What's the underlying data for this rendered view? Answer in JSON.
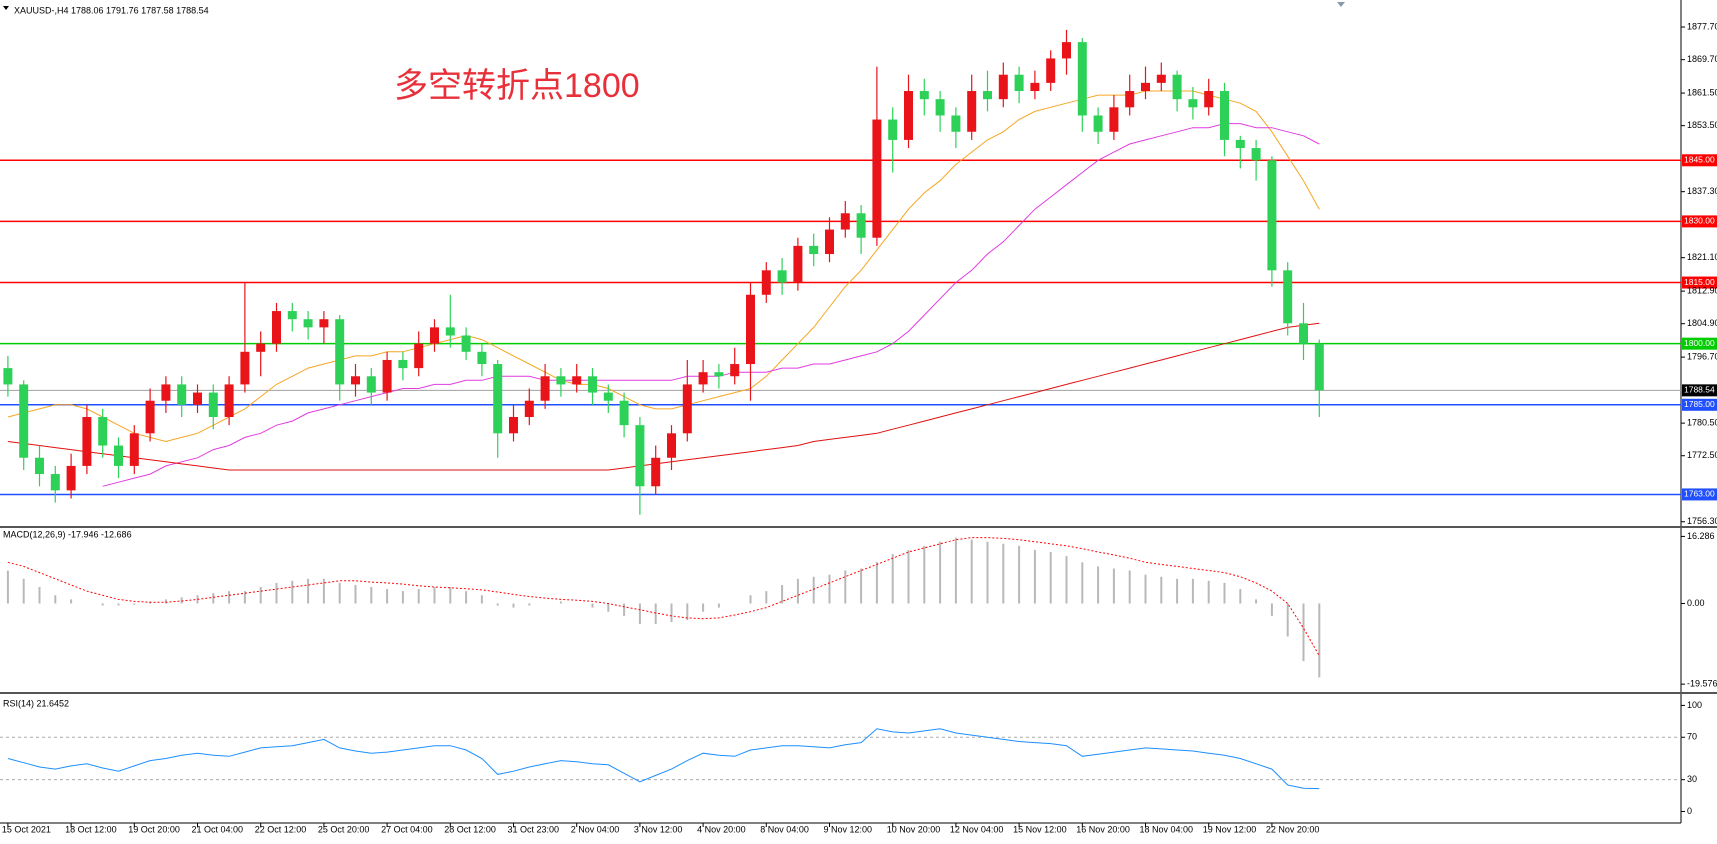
{
  "chart_data": [
    {
      "type": "candlestick",
      "title": "XAUUSD-,H4 1788.06 1791.76 1787.58 1788.54",
      "annotation": "多空转折点1800",
      "up_color": "#e8141a",
      "down_color": "#2ed158",
      "categories": [
        "15 Oct 2021",
        null,
        null,
        null,
        "18 Oct 12:00",
        null,
        null,
        null,
        "19 Oct 20:00",
        null,
        null,
        null,
        "21 Oct 04:00",
        null,
        null,
        null,
        "22 Oct 12:00",
        null,
        null,
        null,
        "25 Oct 20:00",
        null,
        null,
        null,
        "27 Oct 04:00",
        null,
        null,
        null,
        "28 Oct 12:00",
        null,
        null,
        null,
        "31 Oct 23:00",
        null,
        null,
        null,
        "2 Nov 04:00",
        null,
        null,
        null,
        "3 Nov 12:00",
        null,
        null,
        null,
        "4 Nov 20:00",
        null,
        null,
        null,
        "8 Nov 04:00",
        null,
        null,
        null,
        "9 Nov 12:00",
        null,
        null,
        null,
        "10 Nov 20:00",
        null,
        null,
        null,
        "12 Nov 04:00",
        null,
        null,
        null,
        "15 Nov 12:00",
        null,
        null,
        null,
        "16 Nov 20:00",
        null,
        null,
        null,
        "18 Nov 04:00",
        null,
        null,
        null,
        "19 Nov 12:00",
        null,
        null,
        null,
        "22 Nov 20:00",
        null,
        null,
        null
      ],
      "open": [
        1794,
        1790,
        1772,
        1768,
        1764,
        1770,
        1782,
        1775,
        1770,
        1778,
        1786,
        1790,
        1785,
        1788,
        1782,
        1790,
        1798,
        1800,
        1808,
        1806,
        1804,
        1806,
        1790,
        1792,
        1788,
        1796,
        1794,
        1800,
        1804,
        1802,
        1798,
        1795,
        1778,
        1782,
        1786,
        1792,
        1790,
        1792,
        1788,
        1786,
        1780,
        1765,
        1772,
        1778,
        1790,
        1793,
        1792,
        1795,
        1812,
        1818,
        1815,
        1824,
        1822,
        1828,
        1832,
        1826,
        1855,
        1850,
        1862,
        1860,
        1856,
        1852,
        1862,
        1860,
        1866,
        1862,
        1864,
        1870,
        1874,
        1856,
        1852,
        1858,
        1862,
        1864,
        1866,
        1860,
        1858,
        1862,
        1850,
        1848,
        1845,
        1818,
        1805,
        1800
      ],
      "high": [
        1797,
        1791,
        1775,
        1770,
        1773,
        1785,
        1784,
        1777,
        1780,
        1789,
        1792,
        1792,
        1790,
        1790,
        1792,
        1815,
        1803,
        1810,
        1810,
        1808,
        1808,
        1807,
        1795,
        1794,
        1798,
        1798,
        1803,
        1806,
        1812,
        1804,
        1800,
        1796,
        1785,
        1789,
        1795,
        1794,
        1795,
        1794,
        1790,
        1788,
        1782,
        1775,
        1780,
        1796,
        1796,
        1795,
        1799,
        1815,
        1820,
        1821,
        1826,
        1827,
        1831,
        1835,
        1834,
        1868,
        1858,
        1866,
        1865,
        1862,
        1858,
        1866,
        1867,
        1869,
        1868,
        1867,
        1872,
        1877,
        1875,
        1858,
        1861,
        1866,
        1868,
        1869,
        1867,
        1863,
        1865,
        1864,
        1851,
        1850,
        1846,
        1820,
        1810,
        1801
      ],
      "low": [
        1787,
        1769,
        1765,
        1761,
        1762,
        1768,
        1772,
        1767,
        1768,
        1776,
        1783,
        1782,
        1783,
        1779,
        1780,
        1788,
        1792,
        1798,
        1803,
        1801,
        1800,
        1786,
        1787,
        1785,
        1786,
        1791,
        1792,
        1798,
        1799,
        1796,
        1792,
        1772,
        1776,
        1780,
        1784,
        1787,
        1788,
        1785,
        1783,
        1777,
        1758,
        1763,
        1769,
        1776,
        1788,
        1789,
        1790,
        1786,
        1810,
        1812,
        1813,
        1819,
        1820,
        1826,
        1822,
        1824,
        1842,
        1848,
        1856,
        1852,
        1848,
        1850,
        1857,
        1858,
        1859,
        1860,
        1862,
        1866,
        1852,
        1849,
        1850,
        1856,
        1860,
        1862,
        1857,
        1855,
        1856,
        1846,
        1843,
        1840,
        1814,
        1802,
        1796,
        1782
      ],
      "close": [
        1790,
        1772,
        1768,
        1764,
        1770,
        1782,
        1775,
        1770,
        1778,
        1786,
        1790,
        1785,
        1788,
        1782,
        1790,
        1798,
        1800,
        1808,
        1806,
        1804,
        1806,
        1790,
        1792,
        1788,
        1796,
        1794,
        1800,
        1804,
        1802,
        1798,
        1795,
        1778,
        1782,
        1786,
        1792,
        1790,
        1792,
        1788,
        1786,
        1780,
        1765,
        1772,
        1778,
        1790,
        1793,
        1792,
        1795,
        1812,
        1818,
        1815,
        1824,
        1822,
        1828,
        1832,
        1826,
        1855,
        1850,
        1862,
        1860,
        1856,
        1852,
        1862,
        1860,
        1866,
        1862,
        1864,
        1870,
        1874,
        1856,
        1852,
        1858,
        1862,
        1864,
        1866,
        1860,
        1858,
        1862,
        1850,
        1848,
        1845,
        1818,
        1805,
        1800,
        1788.54
      ],
      "series": [
        {
          "color": "#f5a623",
          "values": [
            1782,
            1783,
            1784,
            1785,
            1785,
            1784,
            1782,
            1780,
            1778,
            1777,
            1776,
            1777,
            1778,
            1780,
            1782,
            1784,
            1787,
            1790,
            1792,
            1794,
            1795,
            1796,
            1797,
            1797,
            1798,
            1798,
            1799,
            1800,
            1801,
            1802,
            1801,
            1799,
            1797,
            1795,
            1793,
            1791,
            1790,
            1790,
            1789,
            1787,
            1785,
            1784,
            1784,
            1785,
            1786,
            1787,
            1788,
            1789,
            1792,
            1796,
            1800,
            1804,
            1809,
            1814,
            1818,
            1823,
            1828,
            1833,
            1837,
            1840,
            1844,
            1847,
            1850,
            1852,
            1855,
            1857,
            1858,
            1859,
            1860,
            1861,
            1861,
            1861,
            1862,
            1862,
            1862,
            1862,
            1861,
            1860,
            1859,
            1857,
            1852,
            1846,
            1840,
            1833
          ]
        },
        {
          "color": "#e03ce0",
          "values": [
            null,
            null,
            null,
            null,
            null,
            null,
            1765,
            1766,
            1767,
            1768,
            1770,
            1771,
            1772,
            1774,
            1775,
            1777,
            1778,
            1780,
            1781,
            1783,
            1784,
            1785,
            1786,
            1787,
            1788,
            1789,
            1789,
            1790,
            1790,
            1791,
            1791,
            1792,
            1792,
            1792,
            1791,
            1791,
            1791,
            1791,
            1791,
            1791,
            1791,
            1791,
            1791,
            1792,
            1792,
            1792,
            1793,
            1793,
            1793,
            1794,
            1794,
            1795,
            1795,
            1796,
            1797,
            1798,
            1800,
            1803,
            1807,
            1811,
            1815,
            1818,
            1822,
            1825,
            1829,
            1833,
            1836,
            1839,
            1842,
            1845,
            1847,
            1849,
            1850,
            1851,
            1852,
            1853,
            1853,
            1854,
            1854,
            1853,
            1853,
            1852,
            1851,
            1849
          ]
        },
        {
          "color": "#e01010",
          "values": [
            1776,
            1775.5,
            1775,
            1774.5,
            1774,
            1773.5,
            1773,
            1772.5,
            1772,
            1771.5,
            1771,
            1770.5,
            1770,
            1769.5,
            1769,
            1769,
            1769,
            1769,
            1769,
            1769,
            1769,
            1769,
            1769,
            1769,
            1769,
            1769,
            1769,
            1769,
            1769,
            1769,
            1769,
            1769,
            1769,
            1769,
            1769,
            1769,
            1769,
            1769,
            1769,
            1769.5,
            1770,
            1770.5,
            1771,
            1771.5,
            1772,
            1772.5,
            1773,
            1773.5,
            1774,
            1774.5,
            1775,
            1776,
            1776.5,
            1777,
            1777.5,
            1778,
            1779,
            1780,
            1781,
            1782,
            1783,
            1784,
            1785,
            1786,
            1787,
            1788,
            1789,
            1790,
            1791,
            1792,
            1793,
            1794,
            1795,
            1796,
            1797,
            1798,
            1799,
            1800,
            1801,
            1802,
            1803,
            1804,
            1804.5,
            1805
          ]
        }
      ],
      "levels": [
        {
          "value": 1845,
          "label": "1845.00",
          "color": "#ff0000"
        },
        {
          "value": 1830,
          "label": "1830.00",
          "color": "#ff0000"
        },
        {
          "value": 1815,
          "label": "1815.00",
          "color": "#ff0000"
        },
        {
          "value": 1800,
          "label": "1800.00",
          "color": "#00cc00"
        },
        {
          "value": 1785,
          "label": "1785.00",
          "color": "#1f4fff"
        },
        {
          "value": 1763,
          "label": "1763.00",
          "color": "#1f4fff"
        }
      ],
      "last_price": 1788.54,
      "ylim": [
        1755.5,
        1883.6
      ],
      "yticks": [
        {
          "value": 1877.7,
          "label": "1877.70"
        },
        {
          "value": 1869.7,
          "label": "1869.70"
        },
        {
          "value": 1861.5,
          "label": "1861.50"
        },
        {
          "value": 1853.5,
          "label": "1853.50"
        },
        {
          "value": 1837.3,
          "label": "1837.30"
        },
        {
          "value": 1821.1,
          "label": "1821.10"
        },
        {
          "value": 1812.9,
          "label": "1812.90"
        },
        {
          "value": 1804.9,
          "label": "1804.90"
        },
        {
          "value": 1796.7,
          "label": "1796.70"
        },
        {
          "value": 1780.5,
          "label": "1780.50"
        },
        {
          "value": 1772.5,
          "label": "1772.50"
        },
        {
          "value": 1756.3,
          "label": "1756.30"
        }
      ]
    },
    {
      "type": "macd",
      "title": "MACD(12,26,9) -17.946 -12.686",
      "color": "#b8b8b8",
      "signal_color": "#ff0000",
      "values": [
        8,
        6,
        4,
        2,
        1,
        0,
        -0.5,
        -0.5,
        -0.3,
        0.5,
        1,
        1.5,
        2,
        2.5,
        3,
        3,
        4,
        5,
        5.5,
        6,
        6,
        5,
        4.5,
        4,
        3.5,
        3,
        3.5,
        4,
        4,
        3,
        2,
        -0.5,
        -1,
        -0.5,
        0,
        0.5,
        0,
        -1,
        -2,
        -3,
        -5,
        -5,
        -4.5,
        -4,
        -2,
        -1,
        0,
        2,
        3,
        4.5,
        6,
        6.5,
        7,
        8,
        8.5,
        10,
        12,
        13,
        14,
        15,
        16,
        15.5,
        15,
        14.5,
        14,
        13,
        12.5,
        11.5,
        10,
        9,
        8.5,
        8,
        7,
        6.5,
        6,
        6,
        5.5,
        5,
        3.5,
        1,
        -3,
        -8,
        -14,
        -17.946
      ],
      "signal": [
        10,
        9,
        7.5,
        6,
        4.5,
        3,
        2,
        1,
        0.5,
        0.3,
        0.3,
        0.6,
        1,
        1.5,
        2,
        2.5,
        3,
        3.5,
        4,
        4.5,
        5,
        5.5,
        5.5,
        5.2,
        5,
        4.7,
        4.3,
        4,
        3.8,
        3.6,
        3.3,
        2.8,
        2.2,
        1.7,
        1.3,
        1,
        0.8,
        0.5,
        0,
        -0.8,
        -1.5,
        -2.3,
        -3,
        -3.5,
        -3.7,
        -3.5,
        -2.8,
        -2,
        -1,
        0.5,
        2,
        3.5,
        5,
        6.5,
        8,
        9.5,
        11,
        12.5,
        13.5,
        14.5,
        15.5,
        16,
        16,
        15.8,
        15.5,
        15,
        14.5,
        14,
        13.3,
        12.5,
        11.8,
        11,
        10,
        9.5,
        9,
        8.5,
        8,
        7.5,
        6.5,
        5,
        3,
        0,
        -6,
        -12.686
      ],
      "ylim": [
        -21,
        17.6
      ],
      "yticks": [
        16.286,
        {
          "value": 0,
          "label": "0.00"
        },
        -19.576
      ]
    },
    {
      "type": "line",
      "title": "RSI(14) 21.6452",
      "color": "#1e8fff",
      "values": [
        50,
        46,
        42,
        40,
        43,
        45,
        41,
        38,
        43,
        48,
        50,
        53,
        55,
        53,
        52,
        56,
        60,
        61,
        62,
        65,
        68,
        60,
        57,
        55,
        56,
        58,
        60,
        62,
        62,
        58,
        50,
        35,
        38,
        42,
        45,
        48,
        47,
        45,
        44,
        36,
        28,
        34,
        40,
        48,
        55,
        53,
        52,
        58,
        60,
        62,
        62,
        61,
        60,
        63,
        65,
        78,
        75,
        74,
        76,
        78,
        74,
        72,
        70,
        68,
        66,
        65,
        64,
        62,
        52,
        54,
        56,
        58,
        60,
        59,
        58,
        57,
        55,
        53,
        50,
        45,
        40,
        25,
        22,
        21.6452
      ],
      "levels": [
        70,
        30
      ],
      "ylim": [
        -8,
        107
      ],
      "yticks": [
        100,
        70,
        30,
        0
      ]
    }
  ]
}
